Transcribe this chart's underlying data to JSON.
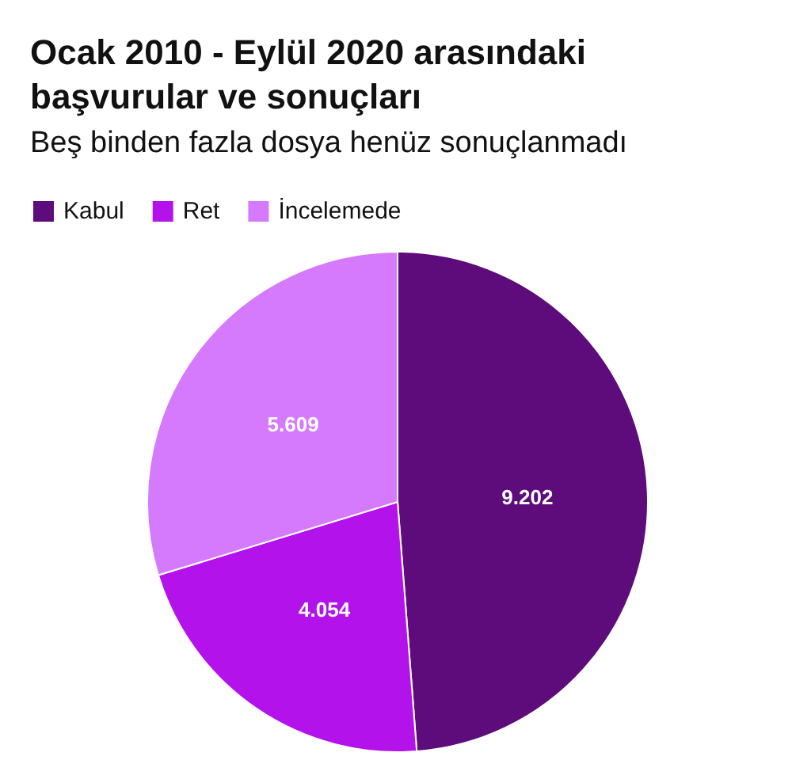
{
  "chart_data": {
    "type": "pie",
    "title": "Ocak 2010 - Eylül 2020 arasındaki başvurular ve sonuçları",
    "subtitle": "Beş binden fazla dosya henüz sonuçlanmadı",
    "categories": [
      "Kabul",
      "Ret",
      "İncelemede"
    ],
    "values": [
      9202,
      4054,
      5609
    ],
    "value_labels": [
      "9.202",
      "4.054",
      "5.609"
    ],
    "colors": [
      "#5e0b7b",
      "#b312ea",
      "#d579fd"
    ],
    "legend": "top left"
  }
}
